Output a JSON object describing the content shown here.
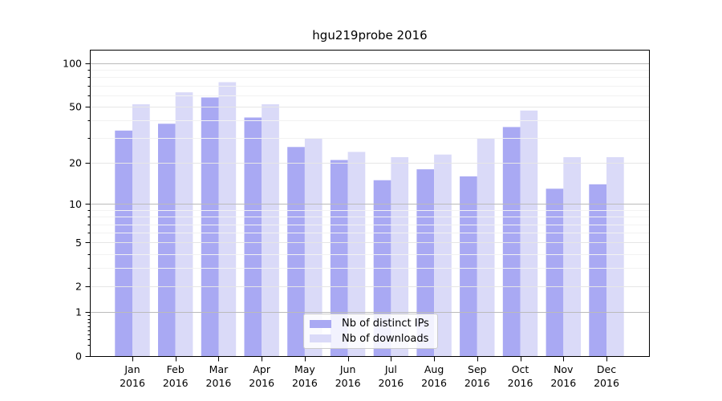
{
  "chart_data": {
    "type": "bar",
    "title": "hgu219probe 2016",
    "categories": [
      "Jan 2016",
      "Feb 2016",
      "Mar 2016",
      "Apr 2016",
      "May 2016",
      "Jun 2016",
      "Jul 2016",
      "Aug 2016",
      "Sep 2016",
      "Oct 2016",
      "Nov 2016",
      "Dec 2016"
    ],
    "series": [
      {
        "name": "Nb of distinct IPs",
        "color": "#a9a9f3",
        "values": [
          34,
          38,
          58,
          42,
          26,
          21,
          15,
          18,
          16,
          36,
          13,
          14
        ]
      },
      {
        "name": "Nb of downloads",
        "color": "#dadaf8",
        "values": [
          52,
          63,
          74,
          52,
          30,
          24,
          22,
          23,
          30,
          47,
          22,
          22
        ]
      }
    ],
    "xlabel": "",
    "ylabel": "",
    "yscale": "log10(1+y)",
    "ylim": [
      0,
      123
    ],
    "yticks": [
      100,
      50,
      20,
      10,
      5,
      2,
      1,
      0
    ],
    "decade_ticks": [
      100,
      10,
      1
    ],
    "minor_ticks": [
      90,
      80,
      70,
      60,
      40,
      30,
      9,
      8,
      7,
      6,
      4,
      3,
      0.9,
      0.8,
      0.7,
      0.6,
      0.5,
      0.4,
      0.3,
      0.2
    ],
    "minor_gridlines": [
      90,
      80,
      70,
      60,
      40,
      30,
      9,
      8,
      7,
      6,
      4,
      3
    ],
    "grid": "horizontal, drawn over bars",
    "legend_position": "inside lower-center",
    "colors": {
      "decade_grid": "#bbbbbb",
      "labeled_grid": "#e6e6e6",
      "minor_grid": "#f2f2f2",
      "axis": "#000000",
      "text": "#000000",
      "legend_border": "#cccccc"
    }
  }
}
